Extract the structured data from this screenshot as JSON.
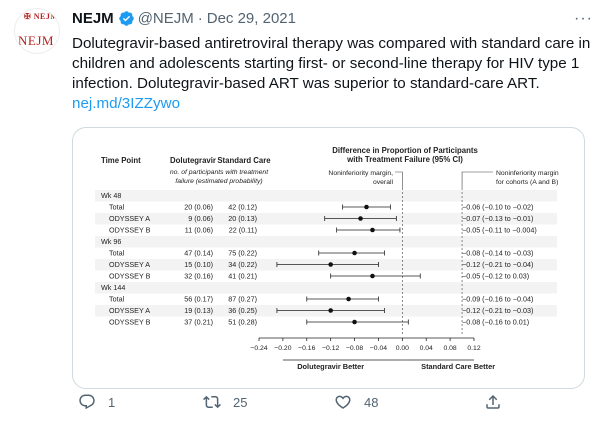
{
  "tweet": {
    "author_name": "NEJM",
    "handle": "@NEJM",
    "date": "Dec 29, 2021",
    "avatar_text": "NEJM",
    "text": "Dolutegravir-based antiretroviral therapy was compared with standard care in children and adolescents starting first- or second-line therapy for HIV type 1 infection. Dolutegravir-based ART was superior to standard-care ART.",
    "link": "nej.md/3IZZywo",
    "replies": "1",
    "retweets": "25",
    "likes": "48"
  },
  "colors": {
    "link": "#1d9bf0",
    "verified": "#1d9bf0",
    "muted": "#536471",
    "brand": "#b4231e"
  },
  "icons": [
    "verified-badge-icon",
    "more-icon",
    "reply-icon",
    "retweet-icon",
    "like-icon",
    "share-icon"
  ],
  "chart_data": {
    "type": "forest",
    "headers": {
      "time_point": "Time Point",
      "dolutegravir": "Dolutegravir",
      "standard_care": "Standard Care",
      "difference_line1": "Difference in Proportion of Participants",
      "difference_line2": "with Treatment Failure (95% CI)",
      "sub_line1": "no. of participants with treatment",
      "sub_line2": "failure (estimated probability)"
    },
    "annotations": {
      "overall_line1": "Noninferiority margin,",
      "overall_line2": "overall",
      "cohort_line1": "Noninferiority margin",
      "cohort_line2": "for cohorts (A and B)"
    },
    "xlim": [
      -0.24,
      0.12
    ],
    "xticks": [
      "−0.24",
      "−0.20",
      "−0.16",
      "−0.12",
      "−0.08",
      "−0.04",
      "0.00",
      "0.04",
      "0.08",
      "0.12"
    ],
    "xtick_values": [
      -0.24,
      -0.2,
      -0.16,
      -0.12,
      -0.08,
      -0.04,
      0.0,
      0.04,
      0.08,
      0.12
    ],
    "noninferiority_overall": 0.0,
    "noninferiority_cohort": 0.1,
    "xlabel_left": "Dolutegravir Better",
    "xlabel_right": "Standard Care Better",
    "groups": [
      {
        "label": "Wk 48",
        "rows": [
          {
            "label": "Total",
            "dtg": "20 (0.06)",
            "soc": "42 (0.12)",
            "est": -0.06,
            "lo": -0.1,
            "hi": -0.02,
            "ci_text": "−0.06 (−0.10 to −0.02)"
          },
          {
            "label": "ODYSSEY A",
            "dtg": "9 (0.06)",
            "soc": "20 (0.13)",
            "est": -0.07,
            "lo": -0.13,
            "hi": -0.01,
            "ci_text": "−0.07 (−0.13 to −0.01)"
          },
          {
            "label": "ODYSSEY B",
            "dtg": "11 (0.06)",
            "soc": "22 (0.11)",
            "est": -0.05,
            "lo": -0.11,
            "hi": -0.004,
            "ci_text": "−0.05 (−0.11 to −0.004)"
          }
        ]
      },
      {
        "label": "Wk 96",
        "rows": [
          {
            "label": "Total",
            "dtg": "47 (0.14)",
            "soc": "75 (0.22)",
            "est": -0.08,
            "lo": -0.14,
            "hi": -0.03,
            "ci_text": "−0.08 (−0.14 to −0.03)"
          },
          {
            "label": "ODYSSEY A",
            "dtg": "15 (0.10)",
            "soc": "34 (0.22)",
            "est": -0.12,
            "lo": -0.21,
            "hi": -0.04,
            "ci_text": "−0.12 (−0.21 to −0.04)"
          },
          {
            "label": "ODYSSEY B",
            "dtg": "32 (0.16)",
            "soc": "41 (0.21)",
            "est": -0.05,
            "lo": -0.12,
            "hi": 0.03,
            "ci_text": "−0.05 (−0.12 to 0.03)"
          }
        ]
      },
      {
        "label": "Wk 144",
        "rows": [
          {
            "label": "Total",
            "dtg": "56 (0.17)",
            "soc": "87 (0.27)",
            "est": -0.09,
            "lo": -0.16,
            "hi": -0.04,
            "ci_text": "−0.09 (−0.16 to −0.04)"
          },
          {
            "label": "ODYSSEY A",
            "dtg": "19 (0.13)",
            "soc": "36 (0.25)",
            "est": -0.12,
            "lo": -0.21,
            "hi": -0.03,
            "ci_text": "−0.12 (−0.21 to −0.03)"
          },
          {
            "label": "ODYSSEY B",
            "dtg": "37 (0.21)",
            "soc": "51 (0.28)",
            "est": -0.08,
            "lo": -0.16,
            "hi": 0.01,
            "ci_text": "−0.08 (−0.16 to 0.01)"
          }
        ]
      }
    ]
  }
}
